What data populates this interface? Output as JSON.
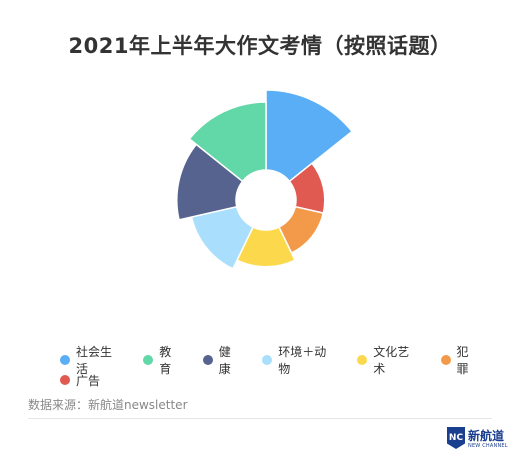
{
  "title": "2021年上半年大作文考情（按照话题）",
  "chart_data": {
    "type": "pie",
    "variant": "rose",
    "series": [
      {
        "name": "社会生活",
        "value": 100,
        "color": "#5aaef5"
      },
      {
        "name": "犯罪",
        "value": 36,
        "color": "#f39a4a"
      },
      {
        "name": "文化艺术",
        "value": 46,
        "color": "#fcd94c"
      },
      {
        "name": "环境＋动物",
        "value": 58,
        "color": "#a9defc"
      },
      {
        "name": "健康",
        "value": 74,
        "color": "#56638e"
      },
      {
        "name": "教育",
        "value": 85,
        "color": "#62d7a7"
      },
      {
        "name": "广告",
        "value": 36,
        "color": "#e05a52"
      }
    ],
    "slice_order": [
      "社会生活",
      "广告",
      "犯罪",
      "文化艺术",
      "环境＋动物",
      "健康",
      "教育"
    ]
  },
  "legend": {
    "row1": [
      {
        "label": "社会生活",
        "color": "#5aaef5"
      },
      {
        "label": "教育",
        "color": "#62d7a7"
      },
      {
        "label": "健康",
        "color": "#56638e"
      },
      {
        "label": "环境＋动物",
        "color": "#a9defc"
      },
      {
        "label": "文化艺术",
        "color": "#fcd94c"
      },
      {
        "label": "犯罪",
        "color": "#f39a4a"
      }
    ],
    "row2": [
      {
        "label": "广告",
        "color": "#e05a52"
      }
    ]
  },
  "source": "数据来源：新航道newsletter",
  "logo": {
    "badge": "NC",
    "name": "新航道",
    "sub": "NEW CHANNEL"
  }
}
